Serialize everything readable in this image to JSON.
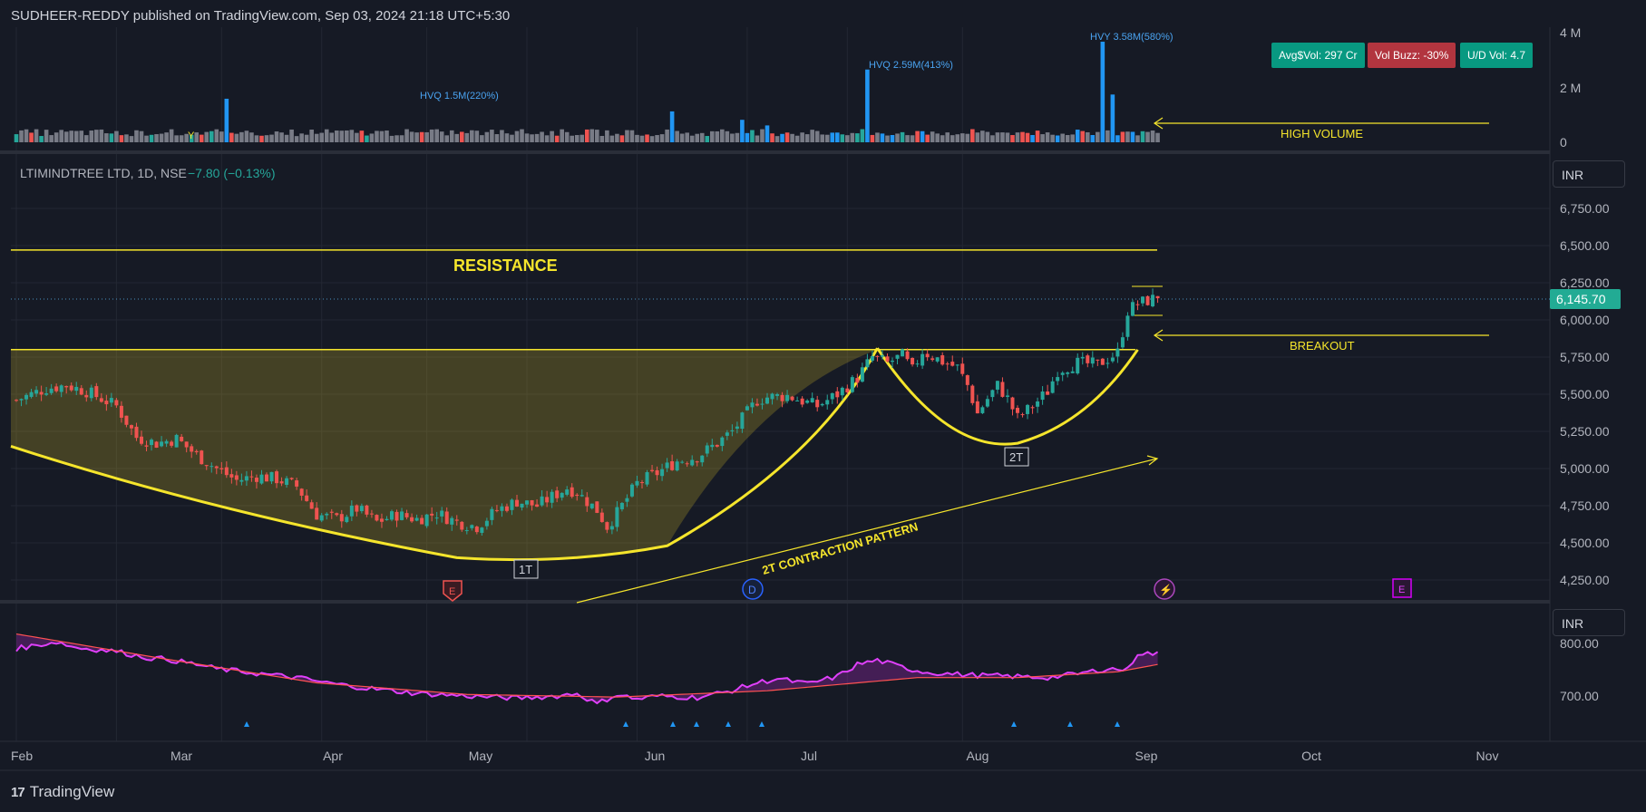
{
  "header": {
    "publisher": "SUDHEER-REDDY published on TradingView.com, Sep 03, 2024 21:18 UTC+5:30"
  },
  "logo": {
    "text": "TradingView",
    "icon": "tradingview-logo-icon"
  },
  "badges": [
    {
      "label": "Avg$Vol: 297 Cr",
      "color": "#089981"
    },
    {
      "label": "Vol Buzz: -30%",
      "color": "#b2353f"
    },
    {
      "label": "U/D Vol: 4.7",
      "color": "#089981"
    }
  ],
  "currency": {
    "main": "INR",
    "indicator": "INR"
  },
  "colors": {
    "up": "#26a69a",
    "down": "#ef5350",
    "accent_yellow": "#f5e52c",
    "volume_hv": "#2196f3",
    "rs_line": "#2196f3",
    "rs_fill_down": "#9c27b0",
    "rs_ma": "#ff5252",
    "rs_line_low": "#e040fb"
  },
  "chart_data": {
    "type": "candlestick",
    "symbol_label": "LTIMINDTREE LTD, 1D, NSE",
    "change_label": "−7.80 (−0.13%)",
    "last_price": 6145.7,
    "last_price_label": "6,145.70",
    "price_axis": {
      "ticks": [
        4250,
        4500,
        4750,
        5000,
        5250,
        5500,
        5750,
        6000,
        6250,
        6500,
        6750
      ],
      "tick_labels": [
        "4,250.00",
        "4,500.00",
        "4,750.00",
        "5,000.00",
        "5,250.00",
        "5,500.00",
        "5,750.00",
        "6,000.00",
        "6,250.00",
        "6,500.00",
        "6,750.00"
      ]
    },
    "volume_axis": {
      "ticks": [
        0,
        2,
        4
      ],
      "tick_labels": [
        "0",
        "2 M",
        "4 M"
      ]
    },
    "indicator_axis": {
      "ticks": [
        700,
        800
      ],
      "tick_labels": [
        "700.00",
        "800.00"
      ]
    },
    "x_axis": {
      "labels": [
        "Feb",
        "Mar",
        "Apr",
        "May",
        "Jun",
        "Jul",
        "Aug",
        "Sep",
        "Oct",
        "Nov"
      ]
    },
    "annotations": {
      "resistance": "RESISTANCE",
      "high_volume": "HIGH VOLUME",
      "breakout": "BREAKOUT",
      "contraction": "2T CONTRACTION PATTERN",
      "t1": "1T",
      "t2": "2T",
      "hvq1": "HVQ 1.5M(220%)",
      "hvq2": "HVQ 2.59M(413%)",
      "hvy": "HVY 3.58M(580%)",
      "y_marker": "Y",
      "earnings1": "E",
      "dividend": "D",
      "split": "⚡",
      "earnings2": "E"
    },
    "resistance_level": 6470,
    "breakout_level": 5800,
    "anchors": [
      [
        0,
        5460
      ],
      [
        6,
        5540
      ],
      [
        10,
        5560
      ],
      [
        14,
        5520
      ],
      [
        20,
        5420
      ],
      [
        24,
        5210
      ],
      [
        28,
        5170
      ],
      [
        32,
        5200
      ],
      [
        36,
        5090
      ],
      [
        40,
        5000
      ],
      [
        44,
        4920
      ],
      [
        48,
        4950
      ],
      [
        52,
        4930
      ],
      [
        56,
        4880
      ],
      [
        60,
        4690
      ],
      [
        64,
        4660
      ],
      [
        68,
        4730
      ],
      [
        72,
        4640
      ],
      [
        76,
        4690
      ],
      [
        80,
        4660
      ],
      [
        84,
        4700
      ],
      [
        88,
        4640
      ],
      [
        92,
        4610
      ],
      [
        96,
        4720
      ],
      [
        100,
        4780
      ],
      [
        104,
        4750
      ],
      [
        108,
        4830
      ],
      [
        110,
        4870
      ],
      [
        112,
        4840
      ],
      [
        116,
        4720
      ],
      [
        118,
        4610
      ],
      [
        120,
        4700
      ],
      [
        124,
        4900
      ],
      [
        128,
        4970
      ],
      [
        132,
        5050
      ],
      [
        136,
        5080
      ],
      [
        140,
        5170
      ],
      [
        143,
        5250
      ],
      [
        148,
        5460
      ],
      [
        150,
        5480
      ],
      [
        154,
        5490
      ],
      [
        160,
        5420
      ],
      [
        164,
        5500
      ],
      [
        168,
        5610
      ],
      [
        171,
        5750
      ],
      [
        174,
        5710
      ],
      [
        177,
        5760
      ],
      [
        179,
        5660
      ],
      [
        181,
        5790
      ],
      [
        185,
        5720
      ],
      [
        188,
        5680
      ],
      [
        190,
        5560
      ],
      [
        192,
        5370
      ],
      [
        194,
        5470
      ],
      [
        196,
        5560
      ],
      [
        198,
        5470
      ],
      [
        200,
        5340
      ],
      [
        203,
        5420
      ],
      [
        206,
        5520
      ],
      [
        208,
        5660
      ],
      [
        212,
        5710
      ],
      [
        216,
        5700
      ],
      [
        220,
        5780
      ],
      [
        222,
        6060
      ],
      [
        224,
        6110
      ],
      [
        227,
        6140
      ],
      [
        228,
        6146
      ]
    ],
    "volume_anchors": [
      [
        20,
        0.4
      ],
      [
        30,
        0.35
      ],
      [
        42,
        1.55
      ],
      [
        60,
        0.3
      ],
      [
        80,
        0.35
      ],
      [
        100,
        0.4
      ],
      [
        120,
        0.3
      ],
      [
        131,
        1.1
      ],
      [
        136,
        0.3
      ],
      [
        145,
        0.8
      ],
      [
        150,
        0.6
      ],
      [
        170,
        2.59
      ],
      [
        180,
        0.4
      ],
      [
        190,
        0.3
      ],
      [
        200,
        0.35
      ],
      [
        213,
        0.4
      ],
      [
        217,
        3.58
      ],
      [
        219,
        1.7
      ],
      [
        222,
        0.38
      ]
    ],
    "rs_anchors": [
      [
        0,
        790
      ],
      [
        8,
        803
      ],
      [
        12,
        792
      ],
      [
        20,
        785
      ],
      [
        26,
        773
      ],
      [
        30,
        770
      ],
      [
        36,
        760
      ],
      [
        40,
        752
      ],
      [
        48,
        743
      ],
      [
        56,
        735
      ],
      [
        62,
        725
      ],
      [
        70,
        715
      ],
      [
        80,
        705
      ],
      [
        90,
        700
      ],
      [
        100,
        696
      ],
      [
        108,
        700
      ],
      [
        112,
        705
      ],
      [
        116,
        685
      ],
      [
        120,
        703
      ],
      [
        124,
        694
      ],
      [
        128,
        700
      ],
      [
        136,
        697
      ],
      [
        142,
        708
      ],
      [
        148,
        725
      ],
      [
        152,
        733
      ],
      [
        158,
        723
      ],
      [
        164,
        737
      ],
      [
        168,
        760
      ],
      [
        172,
        768
      ],
      [
        178,
        752
      ],
      [
        182,
        745
      ],
      [
        190,
        740
      ],
      [
        200,
        737
      ],
      [
        206,
        735
      ],
      [
        212,
        742
      ],
      [
        218,
        752
      ],
      [
        222,
        750
      ],
      [
        224,
        782
      ],
      [
        228,
        780
      ]
    ],
    "rs_ma_anchors": [
      [
        0,
        818
      ],
      [
        30,
        770
      ],
      [
        60,
        725
      ],
      [
        90,
        703
      ],
      [
        120,
        698
      ],
      [
        150,
        710
      ],
      [
        180,
        735
      ],
      [
        200,
        735
      ],
      [
        220,
        746
      ],
      [
        228,
        760
      ]
    ]
  }
}
